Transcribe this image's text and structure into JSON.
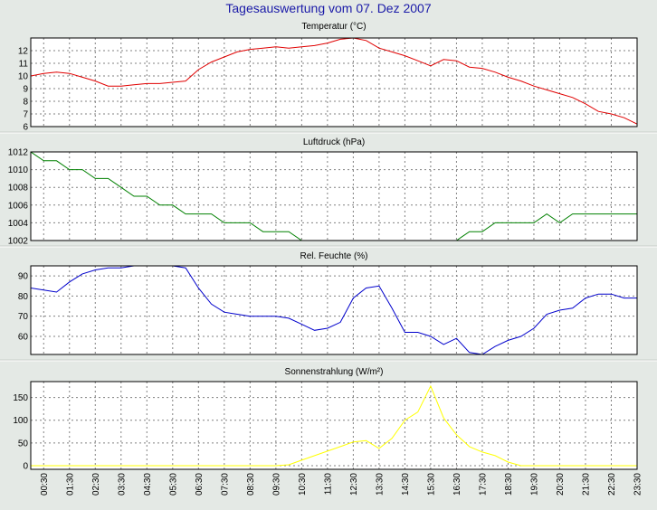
{
  "title": "Tagesauswertung vom 07. Dez 2007",
  "time_labels": [
    "00:30",
    "01:30",
    "02:30",
    "03:30",
    "04:30",
    "05:30",
    "06:30",
    "07:30",
    "08:30",
    "09:30",
    "10:30",
    "11:30",
    "12:30",
    "13:30",
    "14:30",
    "15:30",
    "16:30",
    "17:30",
    "18:30",
    "19:30",
    "20:30",
    "21:30",
    "22:30",
    "23:30"
  ],
  "chart_data": [
    {
      "type": "line",
      "title": "Temperatur (°C)",
      "ylim": [
        6,
        13
      ],
      "yticks": [
        6,
        7,
        8,
        9,
        10,
        11,
        12
      ],
      "grid": true,
      "color": "#e00000",
      "x": [
        0,
        0.5,
        1,
        1.5,
        2,
        2.5,
        3,
        3.5,
        4,
        4.5,
        5,
        5.5,
        6,
        6.5,
        7,
        7.5,
        8,
        8.5,
        9,
        9.5,
        10,
        10.5,
        11,
        11.5,
        12,
        12.5,
        13,
        13.5,
        14,
        14.5,
        15,
        15.5,
        16,
        16.5,
        17,
        17.5,
        18,
        18.5,
        19,
        19.5,
        20,
        20.5,
        21,
        21.5,
        22,
        22.5,
        23,
        23.5
      ],
      "values": [
        10.0,
        10.2,
        10.3,
        10.2,
        9.9,
        9.6,
        9.2,
        9.2,
        9.3,
        9.4,
        9.4,
        9.5,
        9.6,
        10.5,
        11.1,
        11.5,
        11.9,
        12.1,
        12.2,
        12.3,
        12.2,
        12.3,
        12.4,
        12.6,
        12.9,
        13.0,
        12.8,
        12.2,
        11.9,
        11.6,
        11.2,
        10.8,
        11.3,
        11.2,
        10.7,
        10.6,
        10.3,
        9.9,
        9.6,
        9.2,
        8.9,
        8.6,
        8.3,
        7.8,
        7.2,
        7.0,
        6.7,
        6.2
      ]
    },
    {
      "type": "line",
      "title": "Luftdruck (hPa)",
      "ylim": [
        1002,
        1012
      ],
      "yticks": [
        1002,
        1004,
        1006,
        1008,
        1010,
        1012
      ],
      "grid": true,
      "color": "#008000",
      "x": [
        0,
        0.5,
        1,
        1.5,
        2,
        2.5,
        3,
        3.5,
        4,
        4.5,
        5,
        5.5,
        6,
        6.5,
        7,
        7.5,
        8,
        8.5,
        9,
        9.5,
        10,
        10.5,
        11,
        11.5,
        12,
        12.5,
        13,
        13.5,
        14,
        14.5,
        15,
        15.5,
        16,
        16.5,
        17,
        17.5,
        18,
        18.5,
        19,
        19.5,
        20,
        20.5,
        21,
        21.5,
        22,
        22.5,
        23,
        23.5
      ],
      "values": [
        1012,
        1011,
        1011,
        1010,
        1010,
        1009,
        1009,
        1008,
        1007,
        1007,
        1006,
        1006,
        1005,
        1005,
        1005,
        1004,
        1004,
        1004,
        1003,
        1003,
        1003,
        1002,
        1002,
        1002,
        1002,
        1002,
        1002,
        1002,
        1002,
        1002,
        1002,
        1002,
        1002,
        1002,
        1003,
        1003,
        1004,
        1004,
        1004,
        1004,
        1005,
        1004,
        1005,
        1005,
        1005,
        1005,
        1005,
        1005
      ]
    },
    {
      "type": "line",
      "title": "Rel. Feuchte (%)",
      "ylim": [
        51,
        95
      ],
      "yticks": [
        60,
        70,
        80,
        90
      ],
      "grid": true,
      "color": "#0000cc",
      "x": [
        0,
        0.5,
        1,
        1.5,
        2,
        2.5,
        3,
        3.5,
        4,
        4.5,
        5,
        5.5,
        6,
        6.5,
        7,
        7.5,
        8,
        8.5,
        9,
        9.5,
        10,
        10.5,
        11,
        11.5,
        12,
        12.5,
        13,
        13.5,
        14,
        14.5,
        15,
        15.5,
        16,
        16.5,
        17,
        17.5,
        18,
        18.5,
        19,
        19.5,
        20,
        20.5,
        21,
        21.5,
        22,
        22.5,
        23,
        23.5
      ],
      "values": [
        84,
        83,
        82,
        87,
        91,
        93,
        94,
        94,
        95,
        95,
        95,
        95,
        94,
        84,
        76,
        72,
        71,
        70,
        70,
        70,
        69,
        66,
        63,
        64,
        67,
        79,
        84,
        85,
        74,
        62,
        62,
        60,
        56,
        59,
        52,
        51,
        55,
        58,
        60,
        64,
        71,
        73,
        74,
        79,
        81,
        81,
        79,
        79
      ]
    },
    {
      "type": "line",
      "title": "Sonnenstrahlung (W/m²)",
      "ylim": [
        -8,
        185
      ],
      "yticks": [
        0,
        50,
        100,
        150
      ],
      "grid": true,
      "color": "#ffff00",
      "x": [
        0,
        0.5,
        1,
        1.5,
        2,
        2.5,
        3,
        3.5,
        4,
        4.5,
        5,
        5.5,
        6,
        6.5,
        7,
        7.5,
        8,
        8.5,
        9,
        9.5,
        10,
        10.5,
        11,
        11.5,
        12,
        12.5,
        13,
        13.5,
        14,
        14.5,
        15,
        15.5,
        16,
        16.5,
        17,
        17.5,
        18,
        18.5,
        19,
        19.5,
        20,
        20.5,
        21,
        21.5,
        22,
        22.5,
        23,
        23.5
      ],
      "values": [
        0,
        0,
        0,
        0,
        0,
        0,
        0,
        0,
        0,
        0,
        0,
        0,
        0,
        0,
        0,
        0,
        0,
        0,
        0,
        0,
        2,
        12,
        22,
        32,
        42,
        52,
        55,
        38,
        60,
        100,
        118,
        175,
        105,
        68,
        42,
        30,
        22,
        8,
        0,
        0,
        0,
        0,
        0,
        0,
        0,
        0,
        0,
        0
      ]
    }
  ]
}
